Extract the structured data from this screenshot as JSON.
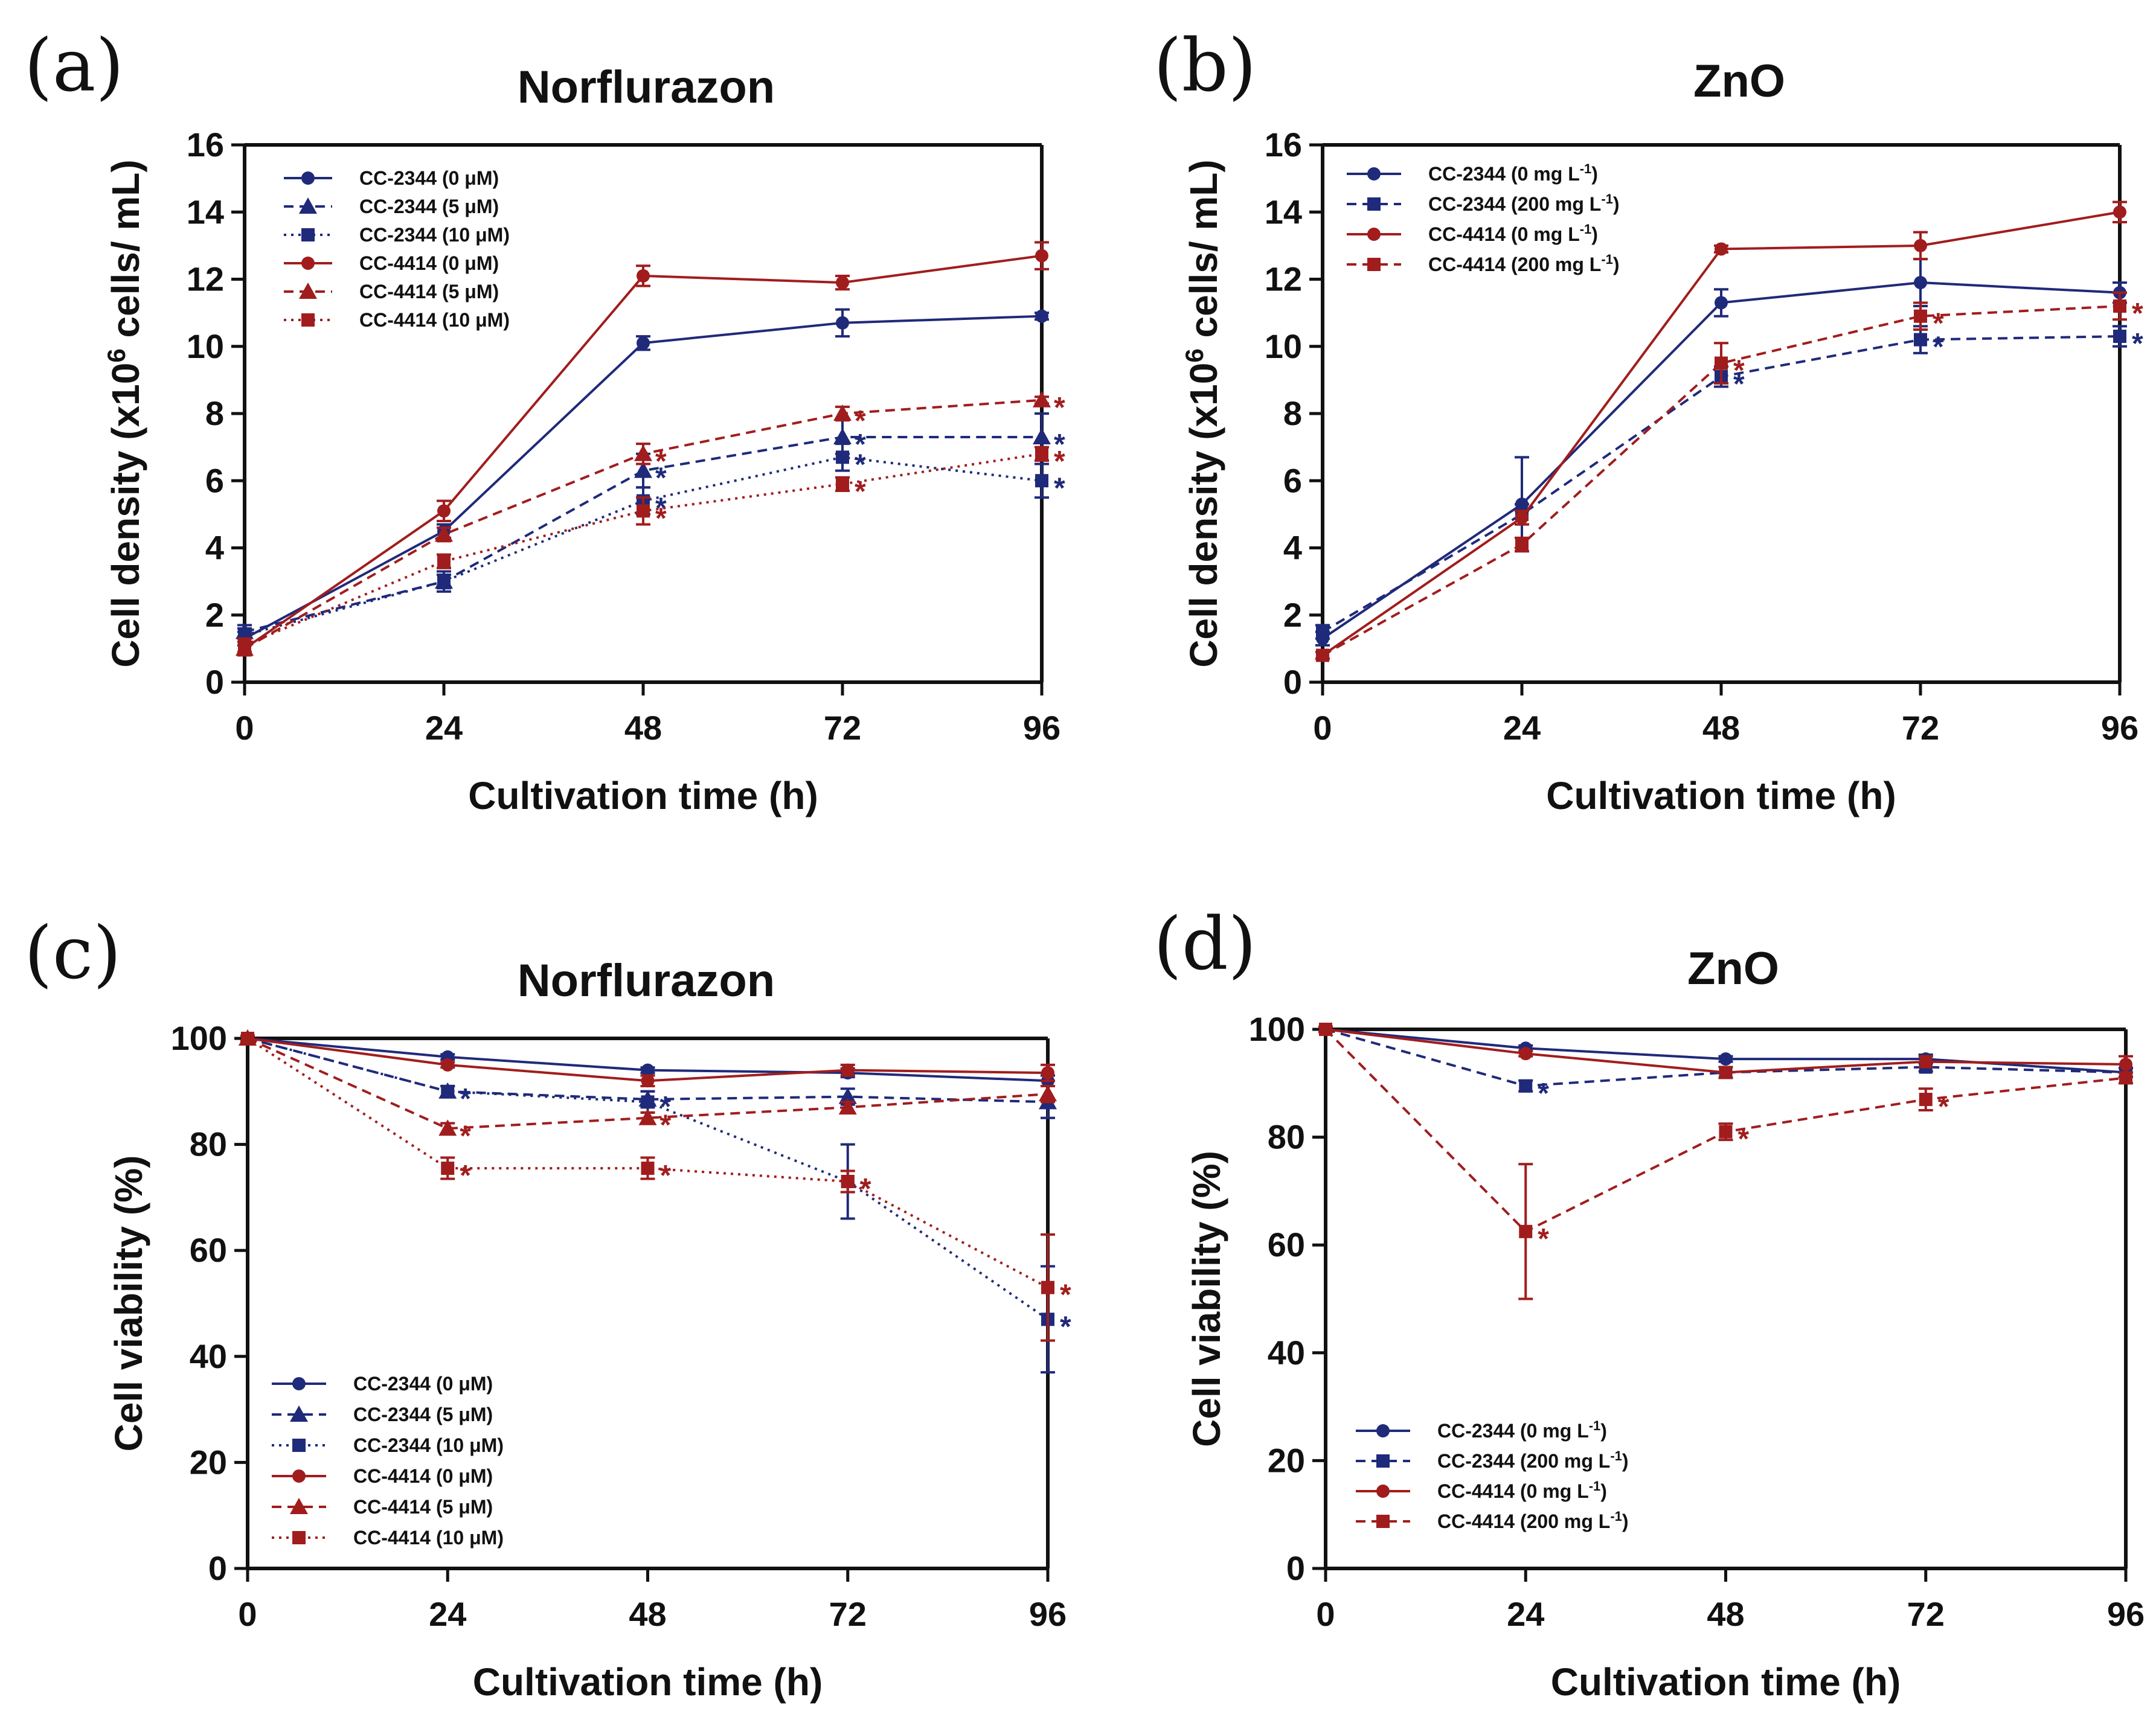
{
  "figure": {
    "colors": {
      "blue": "#1f2a7a",
      "red": "#a11d1d",
      "axis": "#111111"
    }
  },
  "chart_data": [
    {
      "panel": "(a)",
      "type": "line",
      "title": "Norflurazon",
      "xlabel": "Cultivation time (h)",
      "ylabel_parts": [
        "Cell density (x10",
        "6",
        " cells/ mL)"
      ],
      "x": [
        0,
        24,
        48,
        72,
        96
      ],
      "xticks": [
        "0",
        "24",
        "48",
        "72",
        "96"
      ],
      "ylim": [
        0,
        16
      ],
      "yticks": [
        "0",
        "2",
        "4",
        "6",
        "8",
        "10",
        "12",
        "14",
        "16"
      ],
      "legend_position": "top-left",
      "series": [
        {
          "name": "CC-2344 (0 μM)",
          "color": "blue",
          "dash": "solid",
          "marker": "circle",
          "values": [
            1.3,
            4.5,
            10.1,
            10.7,
            10.9
          ],
          "errors": [
            0.2,
            0.2,
            0.2,
            0.4,
            0.1
          ],
          "stars": [
            false,
            false,
            false,
            false,
            false
          ]
        },
        {
          "name": "CC-2344 (5 μM)",
          "color": "blue",
          "dash": "dashed",
          "marker": "triangle",
          "values": [
            1.5,
            3.0,
            6.3,
            7.3,
            7.3
          ],
          "errors": [
            0.2,
            0.3,
            0.5,
            0.5,
            0.7
          ],
          "stars": [
            false,
            false,
            true,
            true,
            true
          ]
        },
        {
          "name": "CC-2344 (10 μM)",
          "color": "blue",
          "dash": "dotted",
          "marker": "square",
          "values": [
            1.4,
            3.0,
            5.4,
            6.7,
            6.0
          ],
          "errors": [
            0.2,
            0.2,
            0.4,
            0.4,
            0.5
          ],
          "stars": [
            false,
            false,
            true,
            true,
            true
          ]
        },
        {
          "name": "CC-4414 (0 μM)",
          "color": "red",
          "dash": "solid",
          "marker": "circle",
          "values": [
            1.0,
            5.1,
            12.1,
            11.9,
            12.7
          ],
          "errors": [
            0.2,
            0.3,
            0.3,
            0.2,
            0.4
          ],
          "stars": [
            false,
            false,
            false,
            false,
            false
          ]
        },
        {
          "name": "CC-4414 (5 μM)",
          "color": "red",
          "dash": "dashed",
          "marker": "triangle",
          "values": [
            1.0,
            4.4,
            6.8,
            8.0,
            8.4
          ],
          "errors": [
            0.2,
            0.2,
            0.3,
            0.2,
            0.1
          ],
          "stars": [
            false,
            false,
            true,
            true,
            true
          ]
        },
        {
          "name": "CC-4414 (10 μM)",
          "color": "red",
          "dash": "dotted",
          "marker": "square",
          "values": [
            1.1,
            3.6,
            5.1,
            5.9,
            6.8
          ],
          "errors": [
            0.2,
            0.2,
            0.4,
            0.2,
            0.2
          ],
          "stars": [
            false,
            false,
            true,
            true,
            true
          ]
        }
      ]
    },
    {
      "panel": "(b)",
      "type": "line",
      "title": "ZnO",
      "xlabel": "Cultivation time (h)",
      "ylabel_parts": [
        "Cell density (x10",
        "6",
        " cells/ mL)"
      ],
      "x": [
        0,
        24,
        48,
        72,
        96
      ],
      "xticks": [
        "0",
        "24",
        "48",
        "72",
        "96"
      ],
      "ylim": [
        0,
        16
      ],
      "yticks": [
        "0",
        "2",
        "4",
        "6",
        "8",
        "10",
        "12",
        "14",
        "16"
      ],
      "legend_position": "top-left",
      "series": [
        {
          "name": "CC-2344 (0 mg L",
          "name_sup": "-1",
          "name_tail": ")",
          "color": "blue",
          "dash": "solid",
          "marker": "circle",
          "values": [
            1.3,
            5.3,
            11.3,
            11.9,
            11.6
          ],
          "errors": [
            0.2,
            1.4,
            0.4,
            0.7,
            0.3
          ],
          "stars": [
            false,
            false,
            false,
            false,
            false
          ]
        },
        {
          "name": "CC-2344 (200 mg L",
          "name_sup": "-1",
          "name_tail": ")",
          "color": "blue",
          "dash": "dashed",
          "marker": "square",
          "values": [
            1.5,
            5.0,
            9.1,
            10.2,
            10.3
          ],
          "errors": [
            0.2,
            0.3,
            0.3,
            0.4,
            0.3
          ],
          "stars": [
            false,
            false,
            true,
            true,
            true
          ]
        },
        {
          "name": "CC-4414 (0 mg L",
          "name_sup": "-1",
          "name_tail": ")",
          "color": "red",
          "dash": "solid",
          "marker": "circle",
          "values": [
            0.8,
            4.9,
            12.9,
            13.0,
            14.0
          ],
          "errors": [
            0.1,
            0.2,
            0.1,
            0.4,
            0.3
          ],
          "stars": [
            false,
            false,
            false,
            false,
            false
          ]
        },
        {
          "name": "CC-4414 (200 mg L",
          "name_sup": "-1",
          "name_tail": ")",
          "color": "red",
          "dash": "dashed",
          "marker": "square",
          "values": [
            0.8,
            4.1,
            9.5,
            10.9,
            11.2
          ],
          "errors": [
            0.1,
            0.2,
            0.6,
            0.4,
            0.4
          ],
          "stars": [
            false,
            false,
            true,
            true,
            true
          ]
        }
      ]
    },
    {
      "panel": "(c)",
      "type": "line",
      "title": "Norflurazon",
      "xlabel": "Cultivation time (h)",
      "ylabel_parts": [
        "Cell viability (%)",
        "",
        ""
      ],
      "x": [
        0,
        24,
        48,
        72,
        96
      ],
      "xticks": [
        "0",
        "24",
        "48",
        "72",
        "96"
      ],
      "ylim": [
        0,
        100
      ],
      "yticks": [
        "0",
        "20",
        "40",
        "60",
        "80",
        "100"
      ],
      "legend_position": "bottom-left",
      "series": [
        {
          "name": "CC-2344  (0 μM)",
          "color": "blue",
          "dash": "solid",
          "marker": "circle",
          "values": [
            100,
            96.5,
            94,
            93.5,
            92
          ],
          "errors": [
            0.5,
            0.5,
            0.5,
            0.8,
            1.0
          ],
          "stars": [
            false,
            false,
            false,
            false,
            false
          ]
        },
        {
          "name": "CC-2344  (5 μM)",
          "color": "blue",
          "dash": "dashed",
          "marker": "triangle",
          "values": [
            100,
            90,
            88.5,
            89,
            88
          ],
          "errors": [
            0.5,
            1.0,
            1.5,
            1.5,
            3.0
          ],
          "stars": [
            false,
            true,
            true,
            false,
            false
          ]
        },
        {
          "name": "CC-2344  (10 μM)",
          "color": "blue",
          "dash": "dotted",
          "marker": "square",
          "values": [
            100,
            90,
            88,
            73,
            47
          ],
          "errors": [
            0.5,
            1.0,
            2.0,
            7.0,
            10.0
          ],
          "stars": [
            false,
            false,
            false,
            true,
            true
          ]
        },
        {
          "name": "CC-4414  (0 μM)",
          "color": "red",
          "dash": "solid",
          "marker": "circle",
          "values": [
            100,
            95,
            92,
            94,
            93.5
          ],
          "errors": [
            0.5,
            0.5,
            1.0,
            1.0,
            1.5
          ],
          "stars": [
            false,
            false,
            false,
            false,
            false
          ]
        },
        {
          "name": "CC-4414  (5 μM)",
          "color": "red",
          "dash": "dashed",
          "marker": "triangle",
          "values": [
            100,
            83,
            85,
            87,
            89.5
          ],
          "errors": [
            0.5,
            1.0,
            1.0,
            1.0,
            1.5
          ],
          "stars": [
            false,
            true,
            true,
            false,
            false
          ]
        },
        {
          "name": "CC-4414  (10 μM)",
          "color": "red",
          "dash": "dotted",
          "marker": "square",
          "values": [
            100,
            75.5,
            75.5,
            73,
            53
          ],
          "errors": [
            0.5,
            2.0,
            2.0,
            2.0,
            10.0
          ],
          "stars": [
            false,
            true,
            true,
            true,
            true
          ]
        }
      ]
    },
    {
      "panel": "(d)",
      "type": "line",
      "title": "ZnO",
      "xlabel": "Cultivation time (h)",
      "ylabel_parts": [
        "Cell viability (%)",
        "",
        ""
      ],
      "x": [
        0,
        24,
        48,
        72,
        96
      ],
      "xticks": [
        "0",
        "24",
        "48",
        "72",
        "96"
      ],
      "ylim": [
        0,
        100
      ],
      "yticks": [
        "0",
        "20",
        "40",
        "60",
        "80",
        "100"
      ],
      "legend_position": "bottom-left",
      "series": [
        {
          "name": "CC-2344 (0 mg L",
          "name_sup": "-1",
          "name_tail": ")",
          "color": "blue",
          "dash": "solid",
          "marker": "circle",
          "values": [
            100,
            96.5,
            94.5,
            94.5,
            92
          ],
          "errors": [
            0.5,
            0.5,
            0.5,
            0.8,
            0.8
          ],
          "stars": [
            false,
            false,
            false,
            false,
            false
          ]
        },
        {
          "name": "CC-2344 (200 mg L",
          "name_sup": "-1",
          "name_tail": ")",
          "color": "blue",
          "dash": "dashed",
          "marker": "square",
          "values": [
            100,
            89.5,
            92,
            93,
            92
          ],
          "errors": [
            0.5,
            1.0,
            1.0,
            0.8,
            0.8
          ],
          "stars": [
            false,
            true,
            false,
            false,
            false
          ]
        },
        {
          "name": "CC-4414 (0 mg L",
          "name_sup": "-1",
          "name_tail": ")",
          "color": "red",
          "dash": "solid",
          "marker": "circle",
          "values": [
            100,
            95.5,
            92,
            94,
            93.5
          ],
          "errors": [
            0.5,
            0.5,
            1.0,
            1.0,
            1.5
          ],
          "stars": [
            false,
            false,
            false,
            false,
            false
          ]
        },
        {
          "name": "CC-4414 (200 mg L",
          "name_sup": "-1",
          "name_tail": ")",
          "color": "red",
          "dash": "dashed",
          "marker": "square",
          "values": [
            100,
            62.5,
            81,
            87,
            91
          ],
          "errors": [
            0.5,
            12.5,
            1.5,
            2.0,
            1.0
          ],
          "stars": [
            false,
            true,
            true,
            true,
            false
          ]
        }
      ]
    }
  ]
}
